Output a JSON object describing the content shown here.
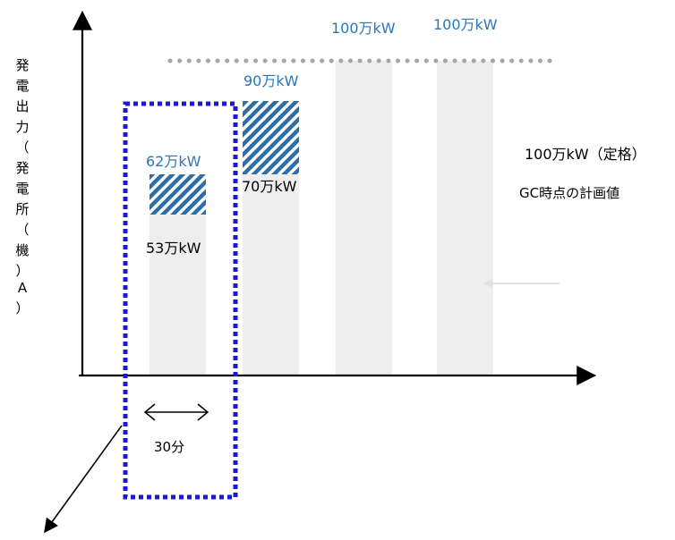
{
  "y_axis_label_chars": [
    "発",
    "電",
    "出",
    "力",
    "（",
    "発",
    "電",
    "所",
    "（",
    "機",
    "）",
    "A",
    "）"
  ],
  "labels": {
    "bar1_planned": "53万kW",
    "bar1_actual": "62万kW",
    "bar2_planned": "70万kW",
    "bar2_actual": "90万kW",
    "bar3_value": "100万kW",
    "bar4_value": "100万kW",
    "rated_label": "100万kW（定格）",
    "plan_label": "GC時点の計画値",
    "interval_label": "30分"
  },
  "colors": {
    "bar_fill": "#eeeeee",
    "hatch_blue": "#2e6ea6",
    "label_blue": "#2e75b6",
    "dotted_frame": "#1a1ad6",
    "rated_dots": "#a6a6a6",
    "axis": "#000000"
  }
}
